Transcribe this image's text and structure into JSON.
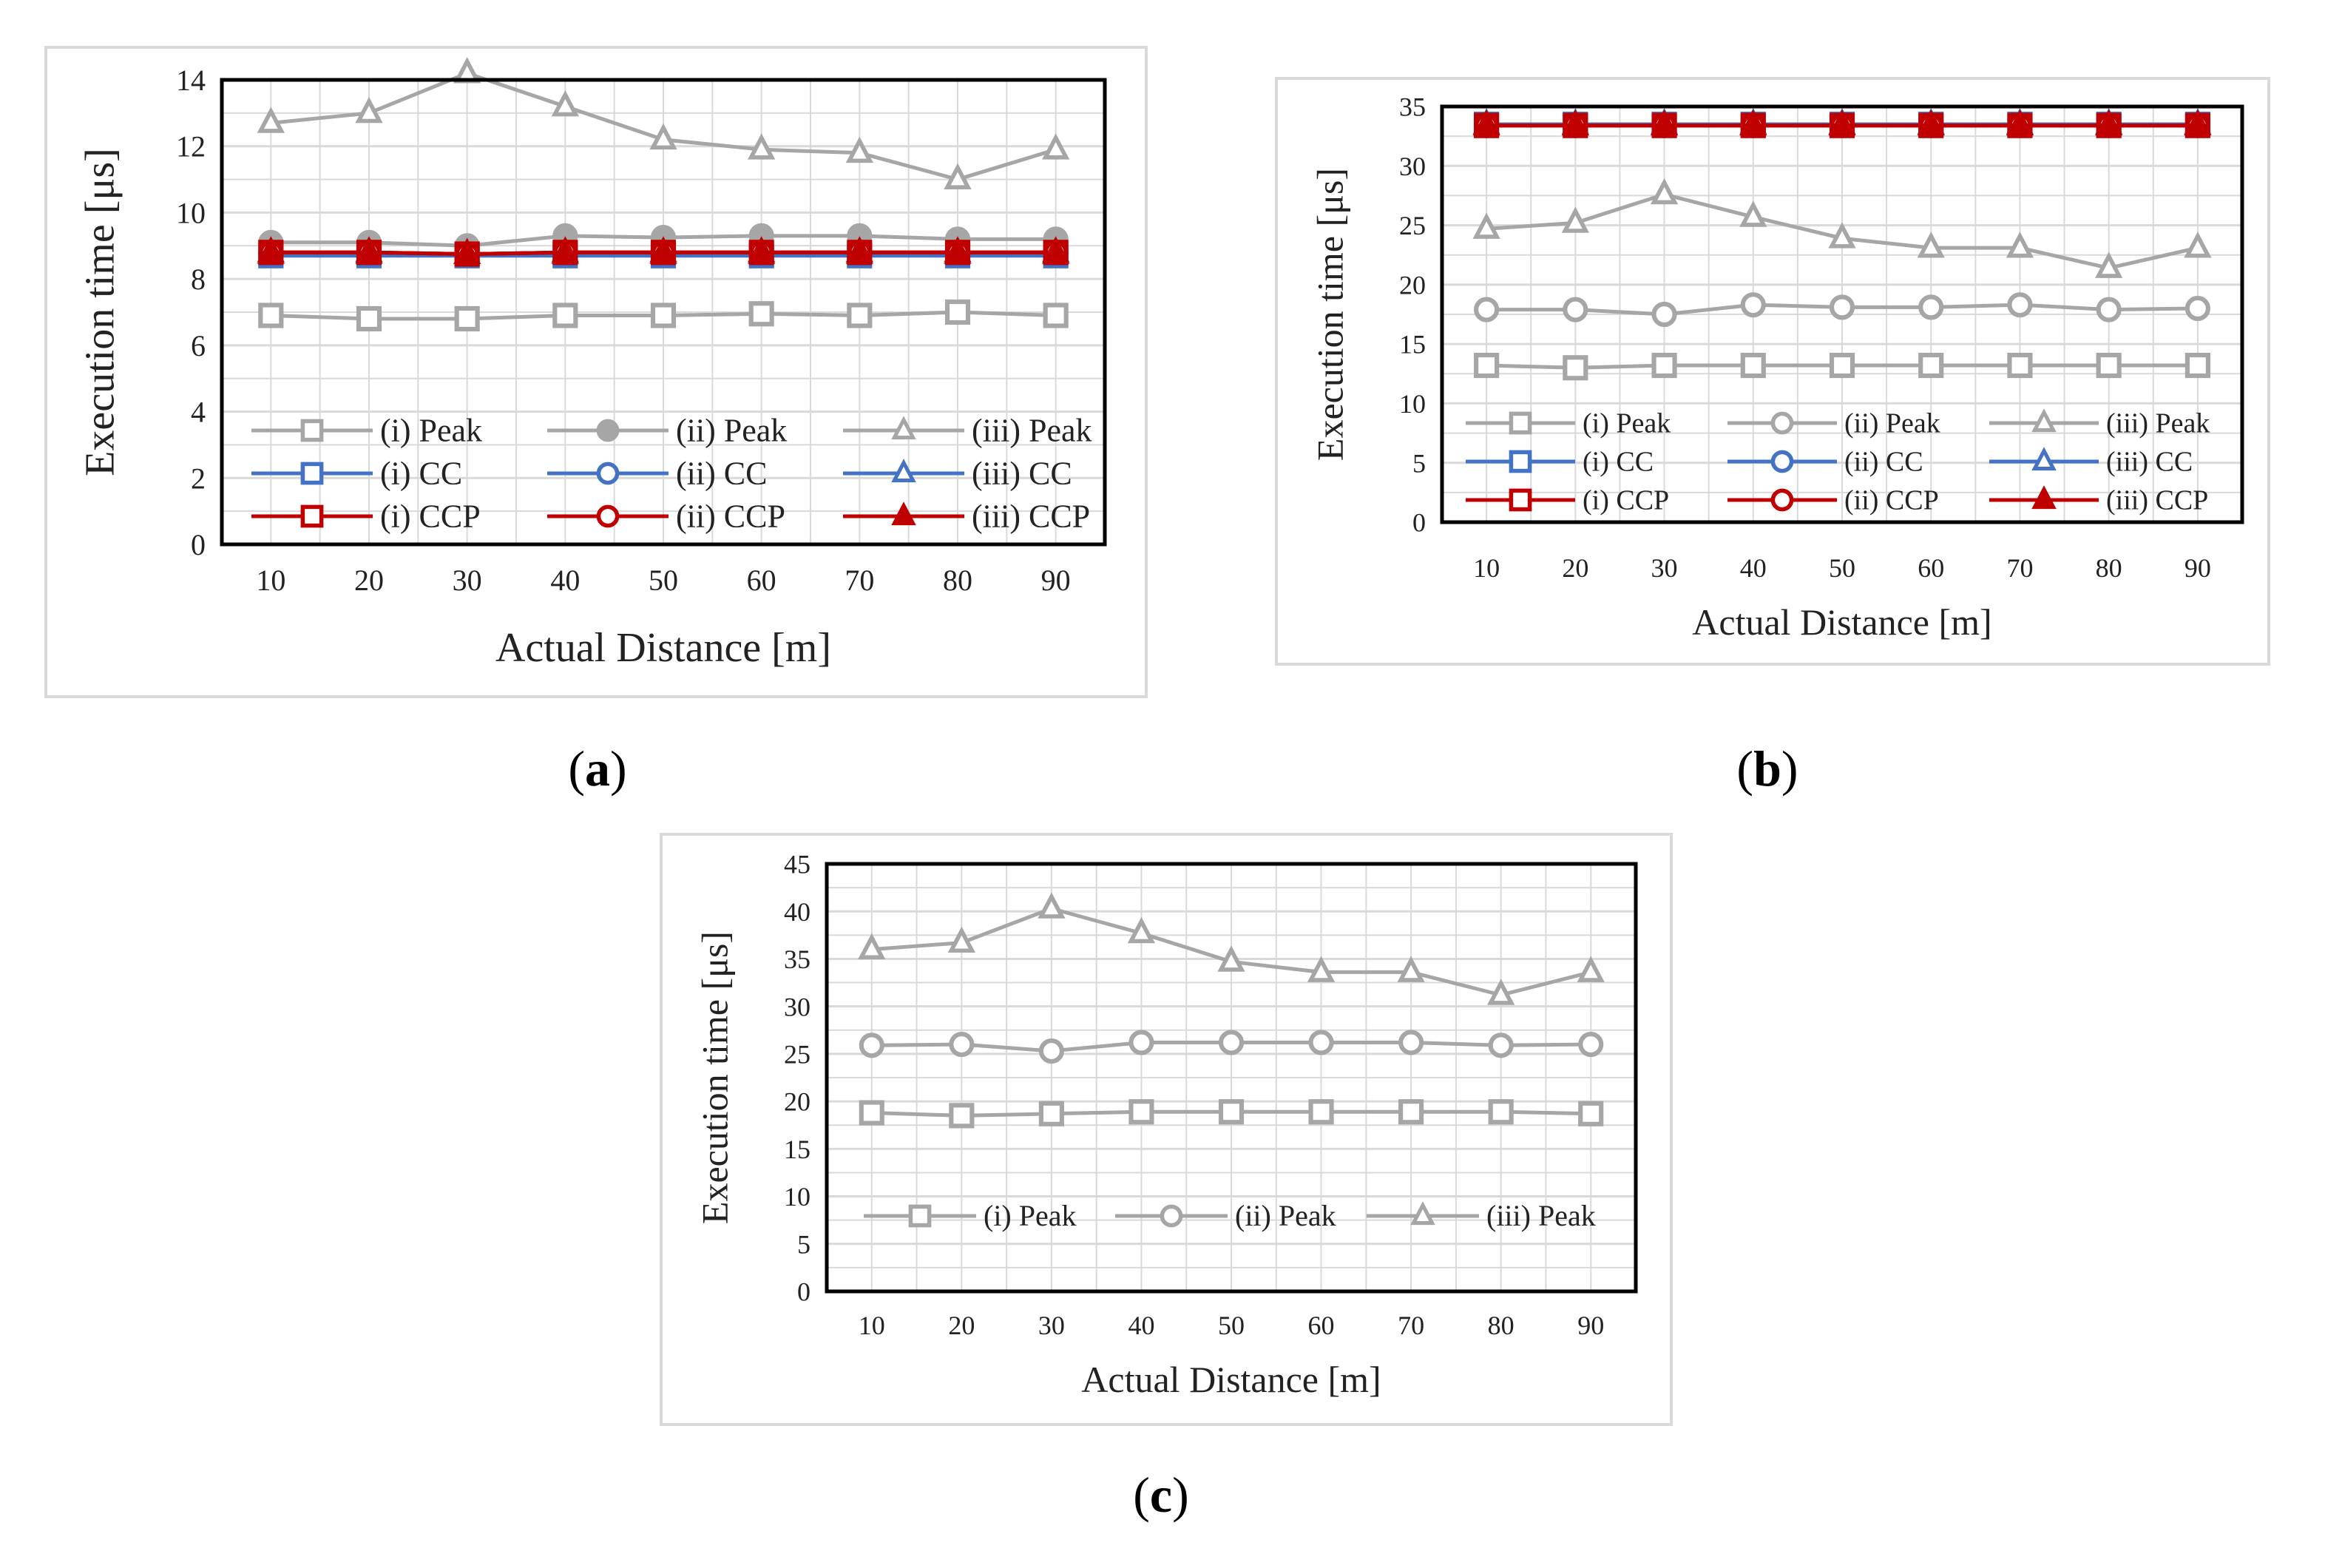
{
  "colors": {
    "peak": "#a6a6a6",
    "cc": "#4472c4",
    "ccp": "#c00000",
    "grid": "#d9d9d9",
    "frame": "#000000"
  },
  "captions": {
    "a": "a",
    "b": "b",
    "c": "c"
  },
  "chart_data": [
    {
      "id": "a",
      "type": "line",
      "title": "",
      "xlabel": "Actual Distance [m]",
      "ylabel": "Execution time [μs]",
      "categories": [
        "10",
        "20",
        "30",
        "40",
        "50",
        "60",
        "70",
        "80",
        "90"
      ],
      "ylim": [
        0,
        14
      ],
      "yticks": [
        0,
        2,
        4,
        6,
        8,
        10,
        12,
        14
      ],
      "grid": true,
      "legend_position": "bottom-inside",
      "series": [
        {
          "name": "(i) Peak",
          "color": "peak",
          "marker": "square",
          "values": [
            6.9,
            6.8,
            6.8,
            6.9,
            6.9,
            6.95,
            6.9,
            7.0,
            6.9
          ]
        },
        {
          "name": "(ii) Peak",
          "color": "peak",
          "marker": "circle-filled",
          "values": [
            9.1,
            9.1,
            9.0,
            9.3,
            9.25,
            9.3,
            9.3,
            9.2,
            9.2
          ]
        },
        {
          "name": "(iii) Peak",
          "color": "peak",
          "marker": "triangle",
          "values": [
            12.7,
            13.0,
            14.2,
            13.2,
            12.2,
            11.9,
            11.8,
            11.0,
            11.9
          ]
        },
        {
          "name": "(i) CC",
          "color": "cc",
          "marker": "square",
          "values": [
            8.7,
            8.7,
            8.7,
            8.7,
            8.7,
            8.7,
            8.7,
            8.7,
            8.7
          ]
        },
        {
          "name": "(ii) CC",
          "color": "cc",
          "marker": "circle",
          "values": [
            8.75,
            8.75,
            8.75,
            8.75,
            8.75,
            8.75,
            8.75,
            8.75,
            8.75
          ]
        },
        {
          "name": "(iii) CC",
          "color": "cc",
          "marker": "triangle",
          "values": [
            8.75,
            8.75,
            8.75,
            8.75,
            8.75,
            8.75,
            8.75,
            8.75,
            8.75
          ]
        },
        {
          "name": "(i) CCP",
          "color": "ccp",
          "marker": "square",
          "values": [
            8.8,
            8.8,
            8.75,
            8.8,
            8.8,
            8.8,
            8.8,
            8.8,
            8.8
          ]
        },
        {
          "name": "(ii) CCP",
          "color": "ccp",
          "marker": "circle",
          "values": [
            8.8,
            8.8,
            8.75,
            8.8,
            8.8,
            8.8,
            8.8,
            8.8,
            8.8
          ]
        },
        {
          "name": "(iii) CCP",
          "color": "ccp",
          "marker": "triangle-filled",
          "values": [
            8.8,
            8.8,
            8.75,
            8.8,
            8.8,
            8.8,
            8.8,
            8.8,
            8.8
          ]
        }
      ]
    },
    {
      "id": "b",
      "type": "line",
      "title": "",
      "xlabel": "Actual Distance [m]",
      "ylabel": "Execution time [μs]",
      "categories": [
        "10",
        "20",
        "30",
        "40",
        "50",
        "60",
        "70",
        "80",
        "90"
      ],
      "ylim": [
        0,
        35
      ],
      "yticks": [
        0,
        5,
        10,
        15,
        20,
        25,
        30,
        35
      ],
      "grid": true,
      "legend_position": "bottom-inside",
      "series": [
        {
          "name": "(i) Peak",
          "color": "peak",
          "marker": "square",
          "values": [
            13.2,
            13.0,
            13.2,
            13.2,
            13.2,
            13.2,
            13.2,
            13.2,
            13.2
          ]
        },
        {
          "name": "(ii) Peak",
          "color": "peak",
          "marker": "circle",
          "values": [
            17.9,
            17.9,
            17.5,
            18.3,
            18.1,
            18.1,
            18.3,
            17.9,
            18.0
          ]
        },
        {
          "name": "(iii) Peak",
          "color": "peak",
          "marker": "triangle",
          "values": [
            24.7,
            25.2,
            27.6,
            25.7,
            23.9,
            23.1,
            23.1,
            21.4,
            23.1
          ]
        },
        {
          "name": "(i) CC",
          "color": "cc",
          "marker": "square",
          "values": [
            33.5,
            33.5,
            33.5,
            33.5,
            33.5,
            33.5,
            33.5,
            33.5,
            33.5
          ]
        },
        {
          "name": "(ii) CC",
          "color": "cc",
          "marker": "circle",
          "values": [
            33.5,
            33.5,
            33.5,
            33.5,
            33.5,
            33.5,
            33.5,
            33.5,
            33.5
          ]
        },
        {
          "name": "(iii) CC",
          "color": "cc",
          "marker": "triangle",
          "values": [
            33.5,
            33.5,
            33.5,
            33.5,
            33.5,
            33.5,
            33.5,
            33.5,
            33.5
          ]
        },
        {
          "name": "(i) CCP",
          "color": "ccp",
          "marker": "square",
          "values": [
            33.4,
            33.4,
            33.4,
            33.4,
            33.4,
            33.4,
            33.4,
            33.4,
            33.4
          ]
        },
        {
          "name": "(ii) CCP",
          "color": "ccp",
          "marker": "circle",
          "values": [
            33.4,
            33.4,
            33.4,
            33.4,
            33.4,
            33.4,
            33.4,
            33.4,
            33.4
          ]
        },
        {
          "name": "(iii) CCP",
          "color": "ccp",
          "marker": "triangle-filled",
          "values": [
            33.4,
            33.4,
            33.4,
            33.4,
            33.4,
            33.4,
            33.4,
            33.4,
            33.4
          ]
        }
      ]
    },
    {
      "id": "c",
      "type": "line",
      "title": "",
      "xlabel": "Actual Distance [m]",
      "ylabel": "Execution time [μs]",
      "categories": [
        "10",
        "20",
        "30",
        "40",
        "50",
        "60",
        "70",
        "80",
        "90"
      ],
      "ylim": [
        0,
        45
      ],
      "yticks": [
        0,
        5,
        10,
        15,
        20,
        25,
        30,
        35,
        40,
        45
      ],
      "grid": true,
      "legend_position": "bottom-inside",
      "series": [
        {
          "name": "(i) Peak",
          "color": "peak",
          "marker": "square",
          "values": [
            18.8,
            18.5,
            18.7,
            18.9,
            18.9,
            18.9,
            18.9,
            18.9,
            18.7
          ]
        },
        {
          "name": "(ii) Peak",
          "color": "peak",
          "marker": "circle",
          "values": [
            25.9,
            26.0,
            25.3,
            26.2,
            26.2,
            26.2,
            26.2,
            25.9,
            26.0
          ]
        },
        {
          "name": "(iii) Peak",
          "color": "peak",
          "marker": "triangle",
          "values": [
            36.0,
            36.7,
            40.3,
            37.7,
            34.7,
            33.6,
            33.6,
            31.2,
            33.6
          ]
        }
      ]
    }
  ]
}
